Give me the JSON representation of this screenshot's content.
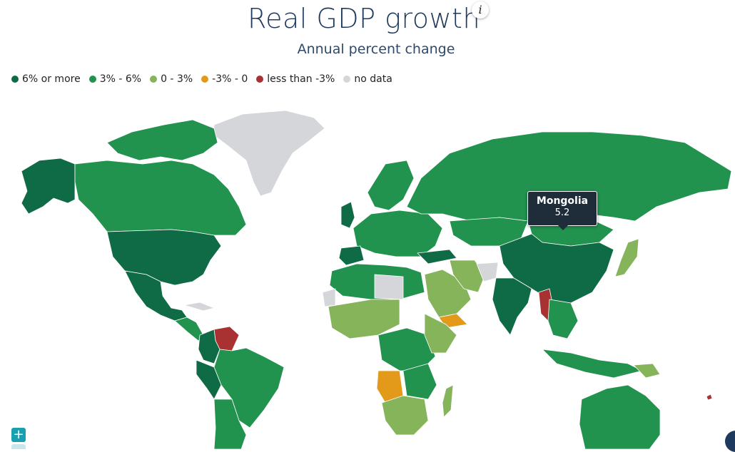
{
  "header": {
    "title": "Real GDP growth",
    "info_label": "i",
    "subtitle": "Annual percent change"
  },
  "legend": [
    {
      "label": "6% or more",
      "color": "#0f6b45"
    },
    {
      "label": "3% - 6%",
      "color": "#22924f"
    },
    {
      "label": "0 - 3%",
      "color": "#86b45a"
    },
    {
      "label": "-3% - 0",
      "color": "#e39a1a"
    },
    {
      "label": "less than -3%",
      "color": "#a83232"
    },
    {
      "label": "no data",
      "color": "#d5d6da"
    }
  ],
  "tooltip": {
    "country": "Mongolia",
    "value": "5.2"
  },
  "controls": {
    "zoom_in_label": "+"
  }
}
